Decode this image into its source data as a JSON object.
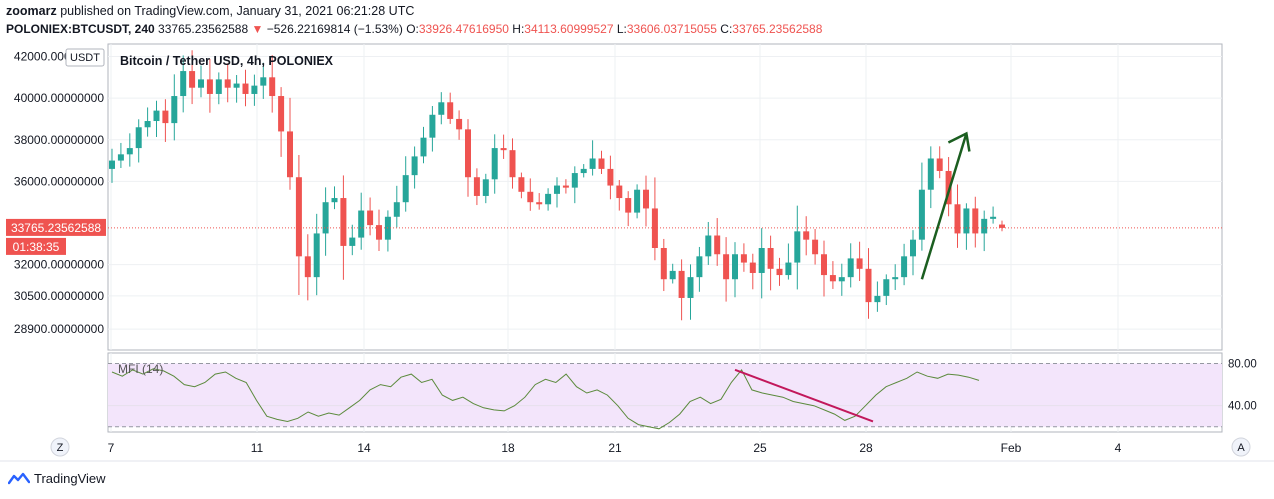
{
  "header": {
    "author": "zoomarz",
    "published_text": "published on TradingView.com, January 31, 2021 06:21:28 UTC",
    "symbol": "POLONIEX:BTCUSDT, 240",
    "last": "33765.23562588",
    "change": "−526.22169814 (−1.53%)",
    "open_label": "O:",
    "open": "33926.47616950",
    "high_label": "H:",
    "high": "34113.60999527",
    "low_label": "L:",
    "low": "33606.03715055",
    "close_label": "C:",
    "close": "33765.23562588"
  },
  "chart_title": "Bitcoin / Tether USD, 4h, POLONIEX",
  "currency_badge": "USDT",
  "price_badge": "33765.23562588",
  "countdown_badge": "01:38:35",
  "price_axis_labels": [
    "42000.00000000",
    "40000.00000000",
    "38000.00000000",
    "36000.00000000",
    "32000.00000000",
    "30500.00000000",
    "28900.00000000"
  ],
  "mfi": {
    "label": "MFI (14)",
    "axis_labels": [
      "80.00",
      "40.00"
    ]
  },
  "time_axis_labels": [
    "7",
    "11",
    "14",
    "18",
    "21",
    "25",
    "28",
    "Feb",
    "4"
  ],
  "buttons": {
    "left": "Z",
    "right": "A"
  },
  "footer": {
    "brand": "TradingView"
  },
  "colors": {
    "up": "#26a69a",
    "down": "#ef5350",
    "mfi_line": "#5b8a3c",
    "mfi_band": "#f3e5fb",
    "arrow": "#1b5e20",
    "trend": "#c2185b"
  },
  "chart_data": [
    {
      "type": "candlestick",
      "title": "Bitcoin / Tether USD, 4h, POLONIEX",
      "ylim": [
        27900,
        42600
      ],
      "y_ticks": [
        42000,
        40000,
        38000,
        36000,
        32000,
        30500,
        28900
      ],
      "x_ticks": [
        "7",
        "11",
        "14",
        "18",
        "21",
        "25",
        "28",
        "Feb",
        "4"
      ],
      "close_series": [
        37000,
        37300,
        37600,
        38600,
        38900,
        39400,
        38800,
        40100,
        41300,
        40500,
        40900,
        40200,
        40900,
        40500,
        40700,
        40200,
        40600,
        41000,
        40100,
        38400,
        36200,
        32400,
        31400,
        33500,
        35000,
        35200,
        32900,
        33300,
        34600,
        33900,
        33200,
        34300,
        35000,
        36300,
        37200,
        38100,
        39200,
        39800,
        39000,
        38500,
        36200,
        35300,
        36100,
        37600,
        37500,
        36200,
        35500,
        35000,
        34900,
        35400,
        35800,
        35700,
        36400,
        36600,
        37100,
        36600,
        35800,
        35200,
        34500,
        35600,
        34700,
        32800,
        31300,
        31700,
        30400,
        31400,
        32400,
        33400,
        32500,
        31300,
        32500,
        32100,
        31600,
        32800,
        31800,
        31500,
        32100,
        33600,
        33200,
        32500,
        31500,
        31200,
        31400,
        32300,
        31800,
        30200,
        30500,
        31300,
        31400,
        32400,
        33200,
        35600,
        37100,
        36500,
        34900,
        33500,
        34700,
        33500,
        34200,
        34300,
        33766
      ],
      "ohlc_open_last": 33926.4761695,
      "ohlc_high_last": 34113.60999527,
      "ohlc_low_last": 33606.03715055,
      "ohlc_close_last": 33765.23562588,
      "annotations": [
        {
          "type": "arrow",
          "from": [
            91,
            31300
          ],
          "to": [
            96,
            38300
          ]
        },
        {
          "type": "price_line",
          "value": 33765.23562588
        }
      ]
    },
    {
      "type": "line",
      "title": "MFI (14)",
      "ylim": [
        15,
        90
      ],
      "bands": [
        20,
        80
      ],
      "values": [
        72,
        68,
        74,
        70,
        75,
        73,
        68,
        60,
        58,
        62,
        70,
        72,
        66,
        62,
        45,
        30,
        27,
        25,
        28,
        34,
        30,
        33,
        31,
        38,
        45,
        55,
        60,
        58,
        67,
        70,
        62,
        65,
        50,
        45,
        48,
        42,
        38,
        36,
        35,
        40,
        48,
        60,
        65,
        62,
        70,
        58,
        52,
        55,
        50,
        40,
        28,
        22,
        20,
        18,
        24,
        32,
        44,
        48,
        42,
        46,
        62,
        74,
        55,
        52,
        50,
        48,
        44,
        42,
        40,
        36,
        32,
        26,
        30,
        40,
        50,
        58,
        62,
        66,
        72,
        68,
        66,
        70,
        69,
        67,
        64
      ]
    }
  ]
}
